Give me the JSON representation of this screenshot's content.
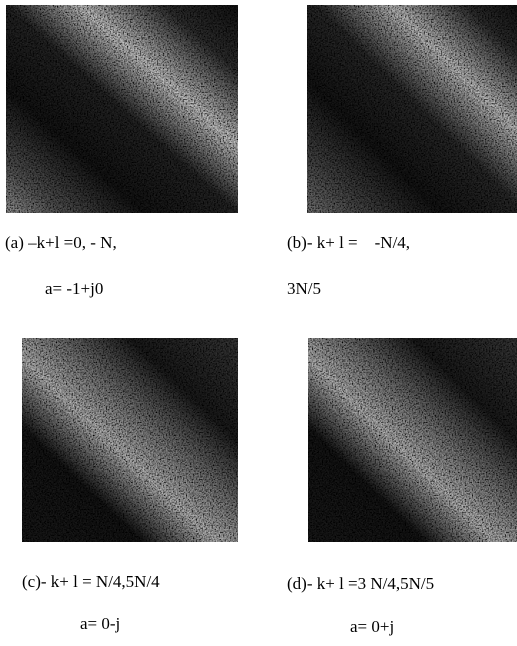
{
  "figure": {
    "panels": [
      {
        "caption_lines": [
          "(a) –k+l =0, - N,",
          "a= -1+j0"
        ]
      },
      {
        "caption_lines": [
          "(b)- k+ l =    -N/4,",
          "3N/5"
        ]
      },
      {
        "caption_lines": [
          "(c)- k+ l = N/4,5N/4",
          "a= 0-j"
        ]
      },
      {
        "caption_lines": [
          "(d)- k+ l =3 N/4,5N/5",
          "a= 0+j"
        ]
      }
    ]
  }
}
